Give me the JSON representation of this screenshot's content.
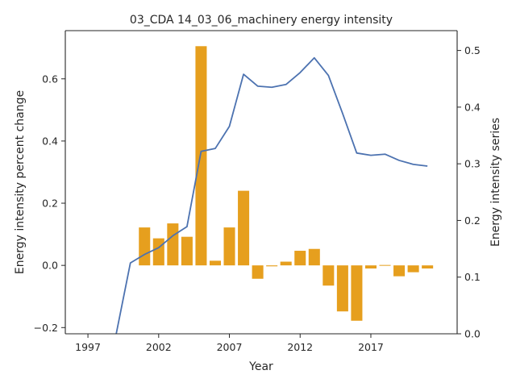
{
  "chart_data": {
    "type": "bar",
    "title": "03_CDA 14_03_06_machinery energy intensity",
    "xlabel": "Year",
    "ylabel_left": "Energy intensity percent change",
    "ylabel_right": "Energy intensity series",
    "xlim": [
      1995.4,
      2023.1
    ],
    "ylim_left": [
      -0.22,
      0.755
    ],
    "ylim_right": [
      0.0,
      0.535
    ],
    "x_ticks": [
      1997,
      2002,
      2007,
      2012,
      2017
    ],
    "y_ticks_left": [
      -0.2,
      0.0,
      0.2,
      0.4,
      0.6
    ],
    "y_ticks_right": [
      0.0,
      0.1,
      0.2,
      0.3,
      0.4,
      0.5
    ],
    "bar_color": "#e69f1e",
    "line_color": "#4c72b0",
    "series": [
      {
        "kind": "bar",
        "axis": "left",
        "x": [
          2001,
          2002,
          2003,
          2004,
          2005,
          2006,
          2007,
          2008,
          2009,
          2010,
          2011,
          2012,
          2013,
          2014,
          2015,
          2016,
          2017,
          2018,
          2019,
          2020,
          2021
        ],
        "values": [
          0.122,
          0.087,
          0.135,
          0.092,
          0.705,
          0.015,
          0.122,
          0.24,
          -0.043,
          -0.003,
          0.012,
          0.047,
          0.053,
          -0.065,
          -0.148,
          -0.178,
          -0.01,
          0.0,
          -0.035,
          -0.022,
          -0.01
        ]
      },
      {
        "kind": "line",
        "axis": "right",
        "x": [
          1999,
          2000,
          2001,
          2002,
          2003,
          2004,
          2005,
          2006,
          2007,
          2008,
          2009,
          2010,
          2011,
          2012,
          2013,
          2014,
          2015,
          2016,
          2017,
          2018,
          2019,
          2020,
          2021
        ],
        "values": [
          0.0,
          0.125,
          0.14,
          0.152,
          0.173,
          0.189,
          0.322,
          0.327,
          0.366,
          0.458,
          0.437,
          0.435,
          0.44,
          0.461,
          0.487,
          0.456,
          0.389,
          0.319,
          0.315,
          0.317,
          0.306,
          0.299,
          0.296
        ]
      }
    ]
  }
}
